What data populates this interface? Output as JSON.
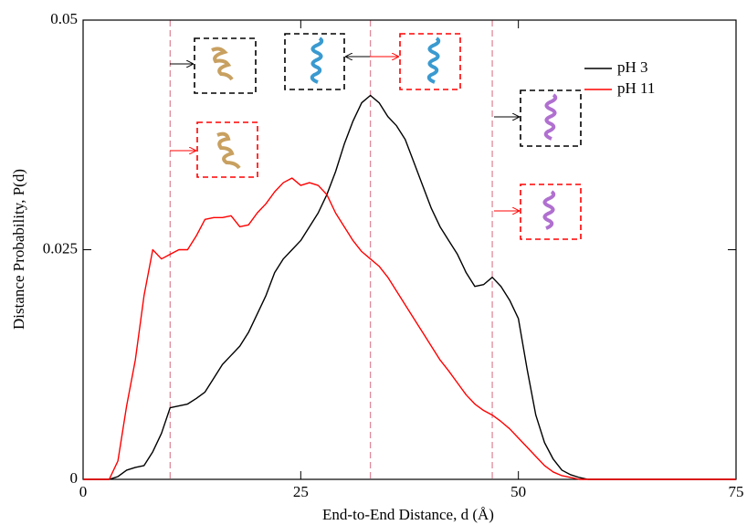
{
  "chart_data": {
    "type": "line",
    "xlabel": "End-to-End Distance, d (Å)",
    "ylabel": "Distance Probability, P(d)",
    "x": [
      0,
      1,
      2,
      3,
      4,
      5,
      6,
      7,
      8,
      9,
      10,
      11,
      12,
      13,
      14,
      15,
      16,
      17,
      18,
      19,
      20,
      21,
      22,
      23,
      24,
      25,
      26,
      27,
      28,
      29,
      30,
      31,
      32,
      33,
      34,
      35,
      36,
      37,
      38,
      39,
      40,
      41,
      42,
      43,
      44,
      45,
      46,
      47,
      48,
      49,
      50,
      51,
      52,
      53,
      54,
      55,
      56,
      57,
      58,
      60,
      65,
      70,
      75
    ],
    "series": [
      {
        "name": "pH 3",
        "color": "#000000",
        "values": [
          0,
          0,
          0,
          0,
          0.0003,
          0.001,
          0.0013,
          0.0015,
          0.003,
          0.005,
          0.0078,
          0.008,
          0.0082,
          0.0088,
          0.0095,
          0.011,
          0.0125,
          0.0135,
          0.0145,
          0.016,
          0.018,
          0.02,
          0.0225,
          0.024,
          0.025,
          0.026,
          0.0275,
          0.029,
          0.031,
          0.0335,
          0.0365,
          0.039,
          0.041,
          0.0418,
          0.041,
          0.0395,
          0.0385,
          0.037,
          0.0345,
          0.032,
          0.0295,
          0.0275,
          0.026,
          0.0245,
          0.0225,
          0.021,
          0.0212,
          0.022,
          0.021,
          0.0195,
          0.0175,
          0.012,
          0.007,
          0.004,
          0.0022,
          0.001,
          0.0005,
          0.0002,
          0,
          0,
          0,
          0,
          0
        ]
      },
      {
        "name": "pH 11",
        "color": "#ff0000",
        "values": [
          0,
          0,
          0,
          0,
          0.002,
          0.008,
          0.013,
          0.02,
          0.025,
          0.024,
          0.0245,
          0.025,
          0.025,
          0.0265,
          0.0283,
          0.0285,
          0.0285,
          0.0287,
          0.0275,
          0.0277,
          0.029,
          0.03,
          0.0313,
          0.0323,
          0.0328,
          0.032,
          0.0323,
          0.032,
          0.031,
          0.029,
          0.0275,
          0.026,
          0.0248,
          0.024,
          0.0232,
          0.022,
          0.0205,
          0.019,
          0.0175,
          0.016,
          0.0145,
          0.013,
          0.0118,
          0.0105,
          0.0092,
          0.0082,
          0.0075,
          0.007,
          0.0063,
          0.0055,
          0.0045,
          0.0035,
          0.0025,
          0.0015,
          0.0008,
          0.0004,
          0.0002,
          0,
          0,
          0,
          0,
          0,
          0
        ]
      }
    ],
    "xlim": [
      0,
      75
    ],
    "xticks": [
      0,
      25,
      50,
      75
    ],
    "ylim": [
      0,
      0.05
    ],
    "yticks": [
      0,
      0.025,
      0.05
    ],
    "vlines": [
      10,
      33,
      47
    ],
    "vline_color": "#e08a9a",
    "legend": "upper right"
  }
}
